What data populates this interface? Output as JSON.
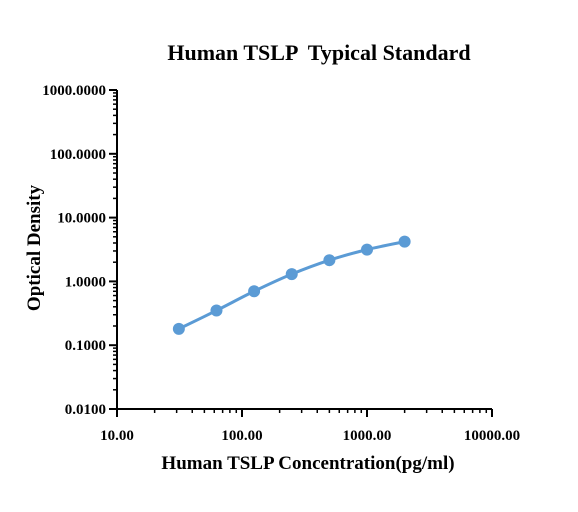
{
  "chart_data": {
    "type": "line",
    "title": "Human TSLP  Typical Standard",
    "xlabel": "Human TSLP Concentration(pg/ml)",
    "ylabel": "Optical Density",
    "x_scale": "log",
    "y_scale": "log",
    "xlim": [
      10,
      10000
    ],
    "ylim": [
      0.01,
      1000
    ],
    "x_tick_values": [
      10,
      100,
      1000,
      10000
    ],
    "x_tick_labels": [
      "10.00",
      "100.00",
      "1000.00",
      "10000.00"
    ],
    "y_tick_values": [
      0.01,
      0.1,
      1,
      10,
      100,
      1000
    ],
    "y_tick_labels": [
      "0.0100",
      "0.1000",
      "1.0000",
      "10.0000",
      "100.0000",
      "1000.0000"
    ],
    "grid": false,
    "legend": "none",
    "series": [
      {
        "x": [
          31.25,
          62.5,
          125,
          250,
          500,
          1000,
          2000
        ],
        "y": [
          0.18,
          0.35,
          0.7,
          1.3,
          2.15,
          3.15,
          4.2
        ]
      }
    ],
    "colors": {
      "series": "#5b9bd5",
      "axis": "#000000"
    }
  }
}
